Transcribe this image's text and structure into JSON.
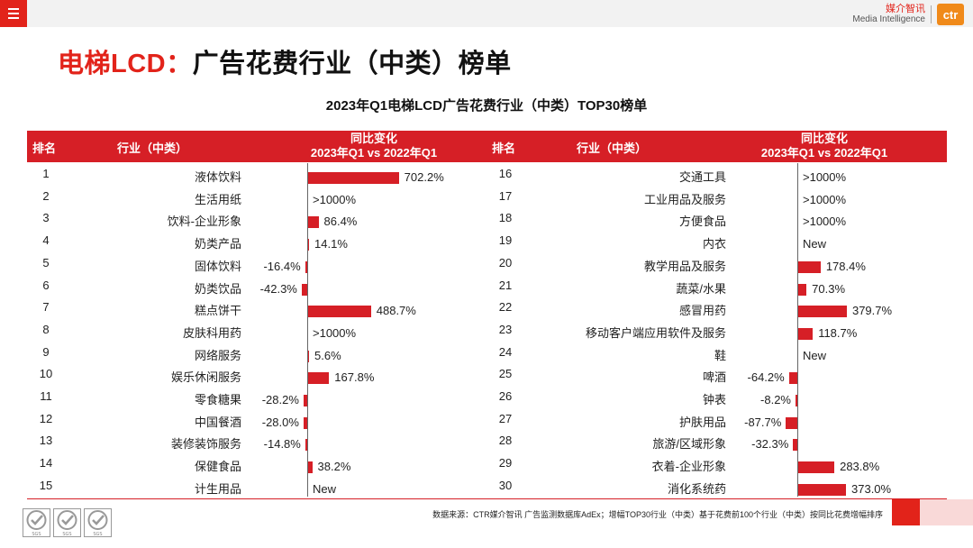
{
  "header": {
    "menu_icon": "hamburger-menu-icon",
    "brand_cn": "媒介智讯",
    "brand_en": "Media Intelligence",
    "logo_text": "ctr",
    "brand_color": "#e2231a",
    "logo_color": "#f08a1a"
  },
  "page": {
    "title_red": "电梯LCD：",
    "title_black": "广告花费行业（中类）榜单"
  },
  "columns": {
    "rank": "排名",
    "industry": "行业（中类）",
    "change_line1": "同比变化",
    "change_line2": "2023年Q1 vs 2022年Q1"
  },
  "footer": {
    "source": "数据来源：CTR媒介智讯 广告监测数据库AdEx；增幅TOP30行业（中类）基于花费前100个行业（中类）按同比花费增幅排序",
    "cert_label": "SGS"
  },
  "chart_data": {
    "type": "table",
    "title": "2023年Q1电梯LCD广告花费行业（中类）TOP30榜单",
    "metric": "同比变化 2023年Q1 vs 2022年Q1 (%)",
    "bar_color": "#d61f26",
    "rows": [
      {
        "rank": "1",
        "industry": "液体饮料",
        "value": 702.2,
        "label": "702.2%"
      },
      {
        "rank": "2",
        "industry": "生活用纸",
        "value": null,
        "label": ">1000%"
      },
      {
        "rank": "3",
        "industry": "饮料-企业形象",
        "value": 86.4,
        "label": "86.4%"
      },
      {
        "rank": "4",
        "industry": "奶类产品",
        "value": 14.1,
        "label": "14.1%"
      },
      {
        "rank": "5",
        "industry": "固体饮料",
        "value": -16.4,
        "label": "-16.4%"
      },
      {
        "rank": "6",
        "industry": "奶类饮品",
        "value": -42.3,
        "label": "-42.3%"
      },
      {
        "rank": "7",
        "industry": "糕点饼干",
        "value": 488.7,
        "label": "488.7%"
      },
      {
        "rank": "8",
        "industry": "皮肤科用药",
        "value": null,
        "label": ">1000%"
      },
      {
        "rank": "9",
        "industry": "网络服务",
        "value": 5.6,
        "label": "5.6%"
      },
      {
        "rank": "10",
        "industry": "娱乐休闲服务",
        "value": 167.8,
        "label": "167.8%"
      },
      {
        "rank": "11",
        "industry": "零食糖果",
        "value": -28.2,
        "label": "-28.2%"
      },
      {
        "rank": "12",
        "industry": "中国餐酒",
        "value": -28.0,
        "label": "-28.0%"
      },
      {
        "rank": "13",
        "industry": "装修装饰服务",
        "value": -14.8,
        "label": "-14.8%"
      },
      {
        "rank": "14",
        "industry": "保健食品",
        "value": 38.2,
        "label": "38.2%"
      },
      {
        "rank": "15",
        "industry": "计生用品",
        "value": null,
        "label": "New"
      },
      {
        "rank": "16",
        "industry": "交通工具",
        "value": null,
        "label": ">1000%"
      },
      {
        "rank": "17",
        "industry": "工业用品及服务",
        "value": null,
        "label": ">1000%"
      },
      {
        "rank": "18",
        "industry": "方便食品",
        "value": null,
        "label": ">1000%"
      },
      {
        "rank": "19",
        "industry": "内衣",
        "value": null,
        "label": "New"
      },
      {
        "rank": "20",
        "industry": "教学用品及服务",
        "value": 178.4,
        "label": "178.4%"
      },
      {
        "rank": "21",
        "industry": "蔬菜/水果",
        "value": 70.3,
        "label": "70.3%"
      },
      {
        "rank": "22",
        "industry": "感冒用药",
        "value": 379.7,
        "label": "379.7%"
      },
      {
        "rank": "23",
        "industry": "移动客户端应用软件及服务",
        "value": 118.7,
        "label": "118.7%"
      },
      {
        "rank": "24",
        "industry": "鞋",
        "value": null,
        "label": "New"
      },
      {
        "rank": "25",
        "industry": "啤酒",
        "value": -64.2,
        "label": "-64.2%"
      },
      {
        "rank": "26",
        "industry": "钟表",
        "value": -8.2,
        "label": "-8.2%"
      },
      {
        "rank": "27",
        "industry": "护肤用品",
        "value": -87.7,
        "label": "-87.7%"
      },
      {
        "rank": "28",
        "industry": "旅游/区域形象",
        "value": -32.3,
        "label": "-32.3%"
      },
      {
        "rank": "29",
        "industry": "衣着-企业形象",
        "value": 283.8,
        "label": "283.8%"
      },
      {
        "rank": "30",
        "industry": "消化系统药",
        "value": 373.0,
        "label": "373.0%"
      }
    ]
  }
}
